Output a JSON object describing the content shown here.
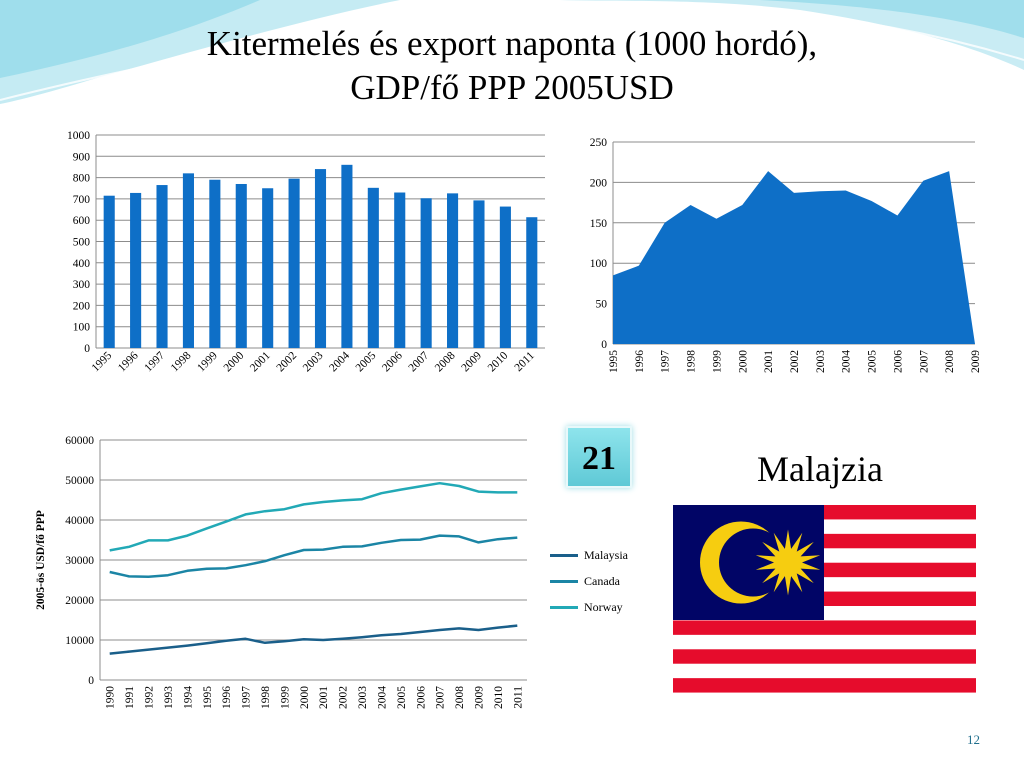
{
  "slide": {
    "title_line1": "Kitermelés és export naponta (1000 hordó),",
    "title_line2": "GDP/fő PPP 2005USD",
    "badge": "21",
    "country": "Malajzia",
    "page_number": "12"
  },
  "colors": {
    "bar": "#0e6fc7",
    "area": "#0e6fc7",
    "malaysia": "#1a5f8a",
    "canada": "#1b85a5",
    "norway": "#22a9b6",
    "flag_red": "#e60c2c",
    "flag_blue": "#010566",
    "flag_yellow": "#f6cd10",
    "wave": "#8ed8e8"
  },
  "chart_data": [
    {
      "type": "bar",
      "categories": [
        "1995",
        "1996",
        "1997",
        "1998",
        "1999",
        "2000",
        "2001",
        "2002",
        "2003",
        "2004",
        "2005",
        "2006",
        "2007",
        "2008",
        "2009",
        "2010",
        "2011"
      ],
      "values": [
        715,
        728,
        765,
        820,
        790,
        770,
        750,
        795,
        840,
        860,
        752,
        730,
        703,
        726,
        693,
        664,
        614
      ],
      "ylim": [
        0,
        1000
      ],
      "yticks": [
        0,
        100,
        200,
        300,
        400,
        500,
        600,
        700,
        800,
        900,
        1000
      ],
      "grid": true
    },
    {
      "type": "area",
      "categories": [
        "1995",
        "1996",
        "1997",
        "1998",
        "1999",
        "2000",
        "2001",
        "2002",
        "2003",
        "2004",
        "2005",
        "2006",
        "2007",
        "2008",
        "2009"
      ],
      "values": [
        85,
        97,
        150,
        172,
        155,
        172,
        214,
        187,
        189,
        190,
        177,
        159,
        202,
        214,
        0
      ],
      "ylim": [
        0,
        250
      ],
      "yticks": [
        0,
        50,
        100,
        150,
        200,
        250
      ],
      "grid": true
    },
    {
      "type": "line",
      "categories": [
        "1990",
        "1991",
        "1992",
        "1993",
        "1994",
        "1995",
        "1996",
        "1997",
        "1998",
        "1999",
        "2000",
        "2001",
        "2002",
        "2003",
        "2004",
        "2005",
        "2006",
        "2007",
        "2008",
        "2009",
        "2010",
        "2011"
      ],
      "ylabel": "2005-ös USD/fő PPP",
      "ylim": [
        0,
        60000
      ],
      "yticks": [
        0,
        10000,
        20000,
        30000,
        40000,
        50000,
        60000
      ],
      "grid": true,
      "legend": "right",
      "series": [
        {
          "name": "Malaysia",
          "values": [
            6600,
            7100,
            7600,
            8100,
            8600,
            9200,
            9800,
            10300,
            9300,
            9700,
            10200,
            10000,
            10300,
            10700,
            11200,
            11500,
            12000,
            12500,
            12900,
            12500,
            13100,
            13600
          ]
        },
        {
          "name": "Canada",
          "values": [
            27000,
            25900,
            25800,
            26200,
            27300,
            27800,
            27900,
            28700,
            29700,
            31200,
            32500,
            32600,
            33300,
            33400,
            34300,
            35000,
            35100,
            36100,
            35900,
            34400,
            35200,
            35600
          ]
        },
        {
          "name": "Norway",
          "values": [
            32400,
            33300,
            34900,
            34900,
            36100,
            37900,
            39600,
            41400,
            42200,
            42700,
            43900,
            44500,
            44900,
            45200,
            46700,
            47600,
            48400,
            49200,
            48500,
            47100,
            46900,
            46900
          ]
        }
      ]
    }
  ]
}
